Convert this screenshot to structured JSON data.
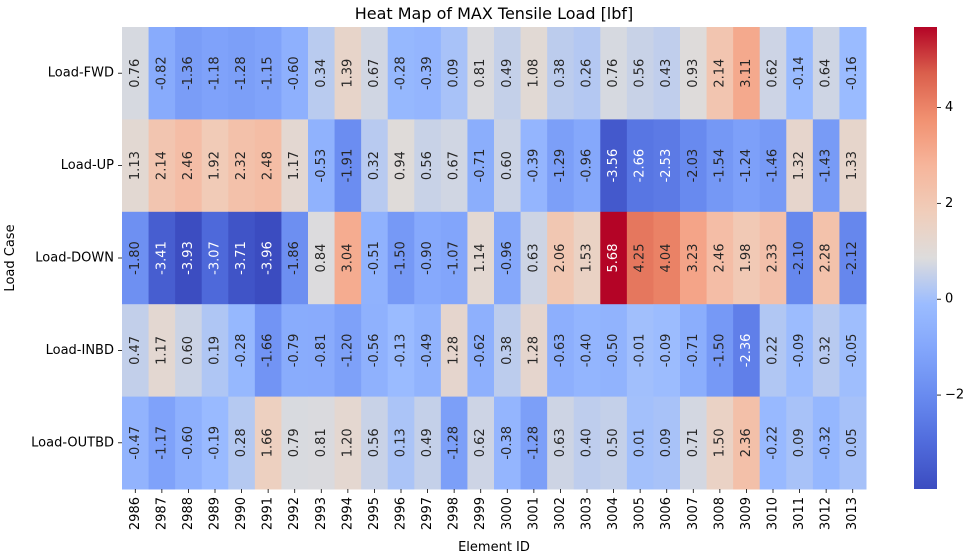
{
  "chart_data": {
    "type": "heatmap",
    "title": "Heat Map of MAX Tensile Load [lbf]",
    "xlabel": "Element ID",
    "ylabel": "Load Case",
    "x_categories": [
      "2986",
      "2987",
      "2988",
      "2989",
      "2990",
      "2991",
      "2992",
      "2993",
      "2994",
      "2995",
      "2996",
      "2997",
      "2998",
      "2999",
      "3000",
      "3001",
      "3002",
      "3003",
      "3004",
      "3005",
      "3006",
      "3007",
      "3008",
      "3009",
      "3010",
      "3011",
      "3012",
      "3013"
    ],
    "y_categories": [
      "Load-FWD",
      "Load-UP",
      "Load-DOWN",
      "Load-INBD",
      "Load-OUTBD"
    ],
    "values": [
      [
        0.76,
        -0.82,
        -1.36,
        -1.18,
        -1.28,
        -1.15,
        -0.6,
        0.34,
        1.39,
        0.67,
        -0.28,
        -0.39,
        0.09,
        0.81,
        0.49,
        1.08,
        0.38,
        0.26,
        0.76,
        0.56,
        0.43,
        0.93,
        2.14,
        3.11,
        0.62,
        -0.14,
        0.64,
        -0.16
      ],
      [
        1.13,
        2.14,
        2.46,
        1.92,
        2.32,
        2.48,
        1.17,
        -0.53,
        -1.91,
        0.32,
        0.94,
        0.56,
        0.67,
        -0.71,
        0.6,
        -0.39,
        -1.29,
        -0.96,
        -3.56,
        -2.66,
        -2.53,
        -2.03,
        -1.54,
        -1.24,
        -1.46,
        1.32,
        -1.43,
        1.33
      ],
      [
        -1.8,
        -3.41,
        -3.93,
        -3.07,
        -3.71,
        -3.96,
        -1.86,
        0.84,
        3.04,
        -0.51,
        -1.5,
        -0.9,
        -1.07,
        1.14,
        -0.96,
        0.63,
        2.06,
        1.53,
        5.68,
        4.25,
        4.04,
        3.23,
        2.46,
        1.98,
        2.33,
        -2.1,
        2.28,
        -2.12
      ],
      [
        0.47,
        1.17,
        0.6,
        0.19,
        -0.28,
        -1.66,
        -0.79,
        -0.81,
        -1.2,
        -0.56,
        -0.13,
        -0.49,
        1.28,
        -0.62,
        0.38,
        1.28,
        -0.63,
        -0.4,
        -0.5,
        -0.01,
        -0.09,
        -0.71,
        -1.5,
        -2.36,
        0.22,
        -0.09,
        0.32,
        -0.05
      ],
      [
        -0.47,
        -1.17,
        -0.6,
        -0.19,
        0.28,
        1.66,
        0.79,
        0.81,
        1.2,
        0.56,
        0.13,
        0.49,
        -1.28,
        0.62,
        -0.38,
        -1.28,
        0.63,
        0.4,
        0.5,
        0.01,
        0.09,
        0.71,
        1.5,
        2.36,
        -0.22,
        0.09,
        -0.32,
        0.05
      ]
    ],
    "value_format": "0.00",
    "colormap": "coolwarm",
    "vmin": -3.96,
    "vmax": 5.68,
    "colorbar_ticks": [
      -2,
      0,
      2,
      4
    ],
    "grid": false
  }
}
